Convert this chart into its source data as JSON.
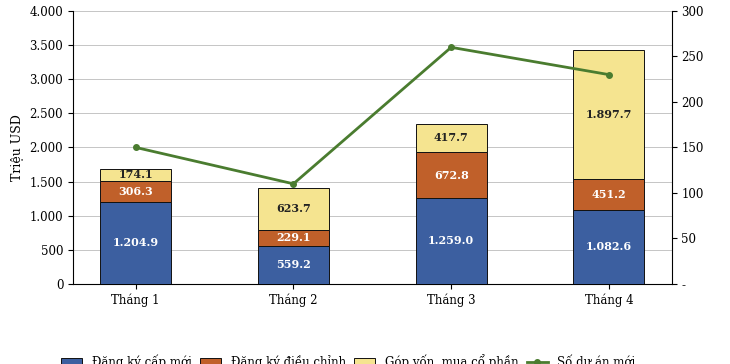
{
  "categories": [
    "Tháng 1",
    "Tháng 2",
    "Tháng 3",
    "Tháng 4"
  ],
  "bar_blue": [
    1204.9,
    559.2,
    1259.0,
    1082.6
  ],
  "bar_orange": [
    306.3,
    229.1,
    672.8,
    451.2
  ],
  "bar_yellow": [
    174.1,
    623.7,
    417.7,
    1897.7
  ],
  "line_values": [
    150,
    110,
    260,
    230
  ],
  "color_blue": "#3c5fa0",
  "color_orange": "#c0602a",
  "color_yellow": "#f5e490",
  "color_line": "#4a7c2f",
  "ylabel_left": "Triệu USD",
  "ylim_left": [
    0,
    4000
  ],
  "ylim_right": [
    0,
    300
  ],
  "yticks_left": [
    0,
    500,
    1000,
    1500,
    2000,
    2500,
    3000,
    3500,
    4000
  ],
  "ytick_labels_left": [
    "0",
    "500",
    "1.000",
    "1.500",
    "2.000",
    "2.500",
    "3.000",
    "3.500",
    "4.000"
  ],
  "yticks_right": [
    0,
    50,
    100,
    150,
    200,
    250,
    300
  ],
  "ytick_labels_right": [
    "-",
    "50",
    "100",
    "150",
    "200",
    "250",
    "300"
  ],
  "legend_labels": [
    "Đăng ký cấp mới",
    "Đăng ký điều chỉnh",
    "Góp vốn, mua cổ phần",
    "Số dự án mới"
  ],
  "bar_width": 0.45,
  "bar_edge_color": "#111111",
  "bar_edge_width": 0.7,
  "line_width": 2.0,
  "line_marker_size": 4,
  "background_color": "#ffffff",
  "grid_color": "#bbbbbb",
  "annotation_fontsize": 8.0,
  "tick_fontsize": 8.5,
  "legend_fontsize": 8.5
}
